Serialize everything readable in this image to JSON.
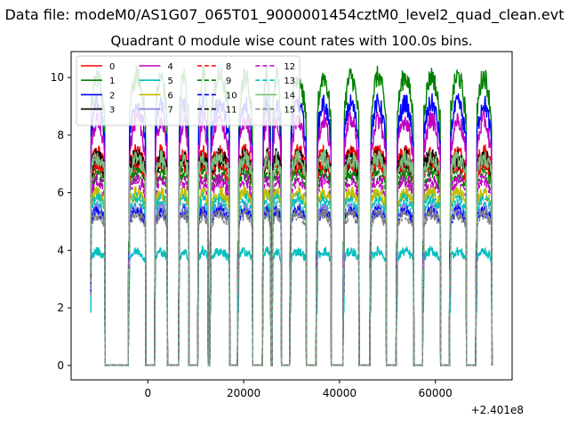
{
  "suptitle": "Data file: modeM0/AS1G07_065T01_9000001454cztM0_level2_quad_clean.evt",
  "chart_data": {
    "type": "line",
    "title": "Quadrant 0 module wise count rates with 100.0s bins.",
    "xlabel": "",
    "ylabel": "",
    "x_offset_label": "+2.401e8",
    "xlim": [
      -16000,
      76000
    ],
    "ylim": [
      -0.5,
      10.9
    ],
    "xticks": [
      0,
      20000,
      40000,
      60000
    ],
    "xtick_labels": [
      "0",
      "20000",
      "40000",
      "60000"
    ],
    "yticks": [
      0,
      2,
      4,
      6,
      8,
      10
    ],
    "ytick_labels": [
      "0",
      "2",
      "4",
      "6",
      "8",
      "10"
    ],
    "grid": false,
    "legend_position": "top-left",
    "observation_windows": [
      [
        -12000,
        -9000
      ],
      [
        -4000,
        -500
      ],
      [
        1500,
        4000
      ],
      [
        6500,
        8500
      ],
      [
        10500,
        12500
      ],
      [
        13000,
        17000
      ],
      [
        18800,
        21800
      ],
      [
        24000,
        25600
      ],
      [
        26000,
        27800
      ],
      [
        29700,
        33000
      ],
      [
        35200,
        38200
      ],
      [
        40800,
        44000
      ],
      [
        46400,
        49700
      ],
      [
        51900,
        55400
      ],
      [
        57400,
        61000
      ],
      [
        63000,
        66400
      ],
      [
        68500,
        71700
      ]
    ],
    "series": [
      {
        "name": "0",
        "color": "#ff0000",
        "dash": "solid",
        "level": 6.9
      },
      {
        "name": "1",
        "color": "#008000",
        "dash": "solid",
        "level": 8.6
      },
      {
        "name": "2",
        "color": "#0000ff",
        "dash": "solid",
        "level": 7.8
      },
      {
        "name": "3",
        "color": "#000000",
        "dash": "solid",
        "level": 6.6
      },
      {
        "name": "4",
        "color": "#bf00bf",
        "dash": "solid",
        "level": 7.3
      },
      {
        "name": "5",
        "color": "#00bfbf",
        "dash": "solid",
        "level": 3.7
      },
      {
        "name": "6",
        "color": "#bfbf00",
        "dash": "solid",
        "level": 5.6
      },
      {
        "name": "7",
        "color": "#8080e0",
        "dash": "solid",
        "level": 5.1
      },
      {
        "name": "8",
        "color": "#ff0000",
        "dash": "dashed",
        "level": 6.5
      },
      {
        "name": "9",
        "color": "#008000",
        "dash": "dashed",
        "level": 6.2
      },
      {
        "name": "10",
        "color": "#0000ff",
        "dash": "dashed",
        "level": 5.0
      },
      {
        "name": "11",
        "color": "#000000",
        "dash": "dashed",
        "level": 6.8
      },
      {
        "name": "12",
        "color": "#bf00bf",
        "dash": "dashed",
        "level": 6.0
      },
      {
        "name": "13",
        "color": "#00bfbf",
        "dash": "dashed",
        "level": 5.4
      },
      {
        "name": "14",
        "color": "#7fbf7f",
        "dash": "solid",
        "level": 6.7
      },
      {
        "name": "15",
        "color": "#808080",
        "dash": "dashed",
        "level": 4.9
      }
    ]
  }
}
